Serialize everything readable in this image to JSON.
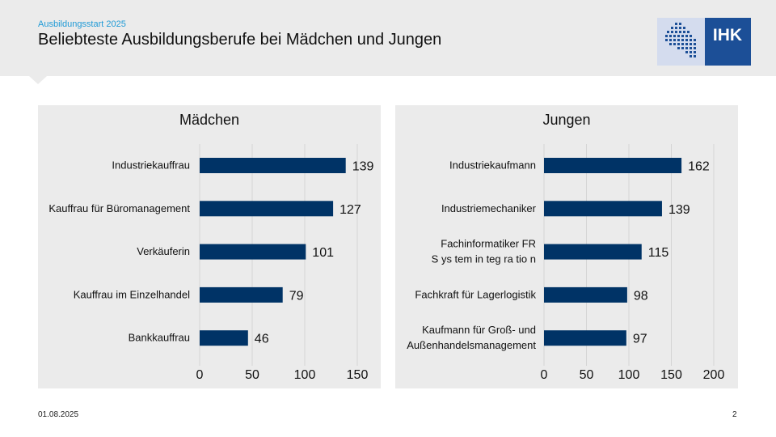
{
  "slide": {
    "kicker": "Ausbildungsstart 2025",
    "title": "Beliebteste Ausbildungsberufe bei Mädchen und Jungen",
    "logo_text": "IHK",
    "date": "01.08.2025",
    "page": "2"
  },
  "colors": {
    "bar": "#003366",
    "header_bg": "#ebebeb",
    "kicker": "#1f9ad6",
    "logo_bg": "#1c4f97",
    "logo_light": "#d4dcee"
  },
  "chart_data": [
    {
      "type": "bar",
      "orientation": "horizontal",
      "title": "Mädchen",
      "categories": [
        "Industriekauffrau",
        "Kauffrau für Büromanagement",
        "Verkäuferin",
        "Kauffrau im Einzelhandel",
        "Bankkauffrau"
      ],
      "values": [
        139,
        127,
        101,
        79,
        46
      ],
      "xlim": [
        0,
        160
      ],
      "xticks": [
        0,
        50,
        100,
        150
      ],
      "grid": true,
      "data_labels": true
    },
    {
      "type": "bar",
      "orientation": "horizontal",
      "title": "Jungen",
      "categories": [
        "Industriekaufmann",
        "Industriemechaniker",
        "Fachinformatiker FR\nS ys tem in teg ra tio n",
        "Fachkraft für Lagerlogistik",
        "Kaufmann für Groß- und\nAußenhandelsmanagement"
      ],
      "values": [
        162,
        139,
        115,
        98,
        97
      ],
      "xlim": [
        0,
        200
      ],
      "xticks": [
        0,
        50,
        100,
        150,
        200
      ],
      "grid": true,
      "data_labels": true
    }
  ]
}
